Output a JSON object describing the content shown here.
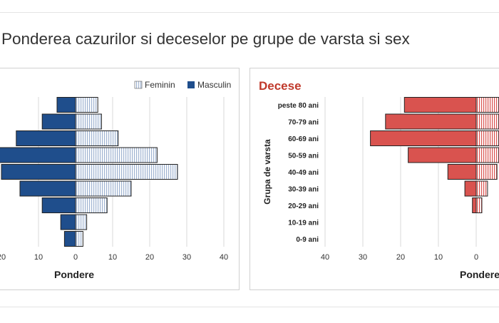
{
  "page": {
    "title": "Ponderea cazurilor si deceselor pe grupe de varsta si sex"
  },
  "chart_data": [
    {
      "type": "bar",
      "orientation": "horizontal-population-pyramid",
      "title": "",
      "legend": {
        "position": "top-right"
      },
      "categories": [
        "peste 80 ani",
        "70-79 ani",
        "60-69 ani",
        "50-59 ani",
        "40-49 ani",
        "30-39 ani",
        "20-29 ani",
        "10-19 ani",
        "0-9 ani"
      ],
      "series": [
        {
          "name": "Feminin",
          "color": "#9fb3d1",
          "pattern": "vertical-lines",
          "values": [
            6,
            7,
            11.5,
            22,
            27.5,
            15,
            8.5,
            3,
            2
          ]
        },
        {
          "name": "Masculin",
          "color": "#1f4e8c",
          "values": [
            5,
            9,
            16,
            20.5,
            20,
            15,
            9,
            4,
            3
          ]
        }
      ],
      "xticks": [
        "0",
        "10",
        "20",
        "30",
        "40"
      ],
      "xlabel": "Pondere",
      "ylabel": "",
      "grid": true
    },
    {
      "type": "bar",
      "orientation": "horizontal-population-pyramid",
      "title": "Decese",
      "title_color": "#c0392b",
      "categories": [
        "peste 80 ani",
        "70-79 ani",
        "60-69 ani",
        "50-59 ani",
        "40-49 ani",
        "30-39 ani",
        "20-29 ani",
        "10-19 ani",
        "0-9 ani"
      ],
      "series": [
        {
          "name": "Masculin",
          "color": "#d9534f",
          "values": [
            19,
            24,
            28,
            18,
            7.5,
            3,
            1,
            0,
            0
          ]
        },
        {
          "name": "Feminin",
          "color": "#f0b3b0",
          "pattern": "vertical-lines",
          "values": [
            6,
            6,
            6,
            6,
            5.5,
            3,
            1.5,
            0,
            0
          ]
        }
      ],
      "xticks": [
        "40",
        "30",
        "20",
        "10",
        "0"
      ],
      "xlabel": "Pondere",
      "ylabel": "Grupa de varsta",
      "grid": true
    }
  ]
}
